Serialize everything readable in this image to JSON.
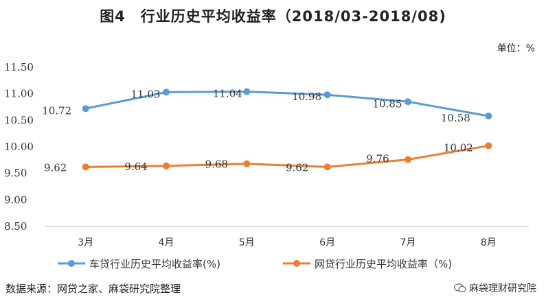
{
  "title": "图4　行业历史平均收益率（2018/03-2018/08)",
  "unit": "单位：%",
  "source": "数据来源：网贷之家、麻袋研究院整理",
  "watermark": "麻袋理财研究院",
  "colors": {
    "series1": "#5b9bd5",
    "series2": "#ed7d31",
    "axis": "#bfbfbf"
  },
  "chart_data": {
    "type": "line",
    "categories": [
      "3月",
      "4月",
      "5月",
      "6月",
      "7月",
      "8月"
    ],
    "ylim": [
      8.5,
      11.5
    ],
    "yticks": [
      "11.50",
      "11.00",
      "10.50",
      "10.00",
      "9.50",
      "9.00",
      "8.50"
    ],
    "ytick_values": [
      11.5,
      11.0,
      10.5,
      10.0,
      9.5,
      9.0,
      8.5
    ],
    "grid": false,
    "legend": "bottom",
    "series": [
      {
        "name": "车贷行业历史平均收益率(%)",
        "values": [
          10.72,
          11.03,
          11.04,
          10.98,
          10.85,
          10.58
        ],
        "labels": [
          "10.72",
          "11.03",
          "11.04",
          "10.98",
          "10.85",
          "10.58"
        ]
      },
      {
        "name": "网贷行业历史平均收益率（%)",
        "values": [
          9.62,
          9.64,
          9.68,
          9.62,
          9.76,
          10.02
        ],
        "labels": [
          "9.62",
          "9.64",
          "9.68",
          "9.62",
          "9.76",
          "10.02"
        ]
      }
    ]
  }
}
